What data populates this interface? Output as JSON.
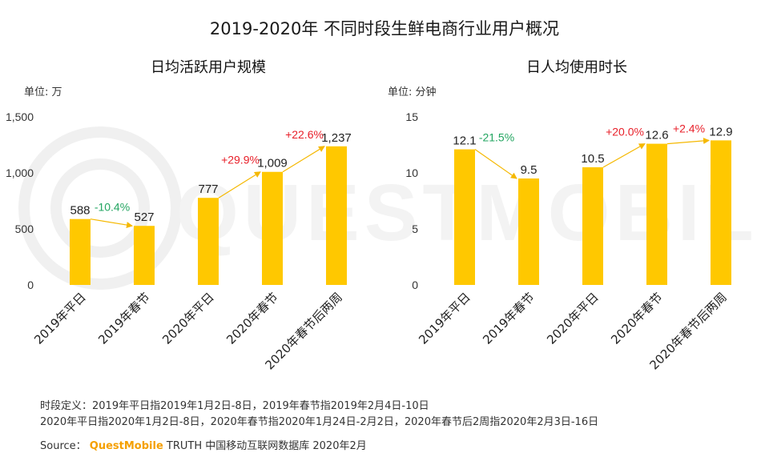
{
  "title": "2019-2020年 不同时段生鲜电商行业用户概况",
  "watermark_text": "QUESTMOBILE",
  "chart_data": [
    {
      "type": "bar",
      "title": "日均活跃用户规模",
      "unit": "单位: 万",
      "categories": [
        "2019年平日",
        "2019年春节",
        "2020年平日",
        "2020年春节",
        "2020年春节后两周"
      ],
      "values": [
        588,
        527,
        777,
        1009,
        1237
      ],
      "value_labels": [
        "588",
        "527",
        "777",
        "1,009",
        "1,237"
      ],
      "ylim": [
        0,
        1500
      ],
      "yticks": [
        0,
        500,
        1000,
        1500
      ],
      "ytick_labels": [
        "0",
        "500",
        "1,000",
        "1,500"
      ],
      "growth": [
        {
          "from": 0,
          "to": 1,
          "label": "-10.4%",
          "color": "#22a560"
        },
        {
          "from": 2,
          "to": 3,
          "label": "+29.9%",
          "color": "#e8202a"
        },
        {
          "from": 3,
          "to": 4,
          "label": "+22.6%",
          "color": "#e8202a"
        }
      ],
      "bar_color": "#ffc800",
      "arrow_color": "#f5b800"
    },
    {
      "type": "bar",
      "title": "日人均使用时长",
      "unit": "单位: 分钟",
      "categories": [
        "2019年平日",
        "2019年春节",
        "2020年平日",
        "2020年春节",
        "2020年春节后两周"
      ],
      "values": [
        12.1,
        9.5,
        10.5,
        12.6,
        12.9
      ],
      "value_labels": [
        "12.1",
        "9.5",
        "10.5",
        "12.6",
        "12.9"
      ],
      "ylim": [
        0,
        15
      ],
      "yticks": [
        0,
        5,
        10,
        15
      ],
      "ytick_labels": [
        "0",
        "5",
        "10",
        "15"
      ],
      "growth": [
        {
          "from": 0,
          "to": 1,
          "label": "-21.5%",
          "color": "#22a560"
        },
        {
          "from": 2,
          "to": 3,
          "label": "+20.0%",
          "color": "#e8202a"
        },
        {
          "from": 3,
          "to": 4,
          "label": "+2.4%",
          "color": "#e8202a"
        }
      ],
      "bar_color": "#ffc800",
      "arrow_color": "#f5b800"
    }
  ],
  "footnote": {
    "line1": "时段定义：2019年平日指2019年1月2日-8日，2019年春节指2019年2月4日-10日",
    "line2": "2020年平日指2020年1月2日-8日，2020年春节指2020年1月24日-2月2日，2020年春节后2周指2020年2月3日-16日"
  },
  "source": {
    "label": "Source：",
    "brand": "QuestMobile",
    "text": " TRUTH 中国移动互联网数据库 2020年2月"
  }
}
